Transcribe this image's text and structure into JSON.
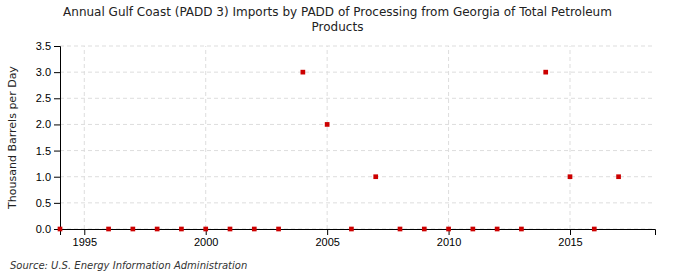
{
  "chart_data": {
    "type": "scatter",
    "title": "Annual Gulf Coast (PADD 3) Imports by PADD of Processing from Georgia of Total Petroleum\nProducts",
    "y_label": "Thousand Barrels per Day",
    "source": "Source: U.S. Energy Information Administration",
    "x": [
      1994,
      1996,
      1997,
      1998,
      1999,
      2000,
      2001,
      2002,
      2003,
      2004,
      2005,
      2006,
      2007,
      2008,
      2009,
      2010,
      2011,
      2012,
      2013,
      2014,
      2015,
      2016,
      2017
    ],
    "values": [
      0.0,
      0.0,
      0.0,
      0.0,
      0.0,
      0.0,
      0.0,
      0.0,
      0.0,
      3.0,
      2.0,
      0.0,
      1.0,
      0.0,
      0.0,
      0.0,
      0.0,
      0.0,
      0.0,
      3.0,
      1.0,
      0.0,
      1.0
    ],
    "color": "#cc0000",
    "marker": "square",
    "xlim": [
      1994,
      2018.5
    ],
    "xticks": [
      1995,
      2000,
      2005,
      2010,
      2015
    ],
    "ylim": [
      0.0,
      3.5
    ],
    "yticks": [
      {
        "value": 0.0,
        "label": "0.0"
      },
      0.5,
      {
        "value": 1.0,
        "label": "1.0"
      },
      1.5,
      {
        "value": 2.0,
        "label": "2.0"
      },
      2.5,
      {
        "value": 3.0,
        "label": "3.0"
      },
      3.5
    ],
    "grid": true
  }
}
